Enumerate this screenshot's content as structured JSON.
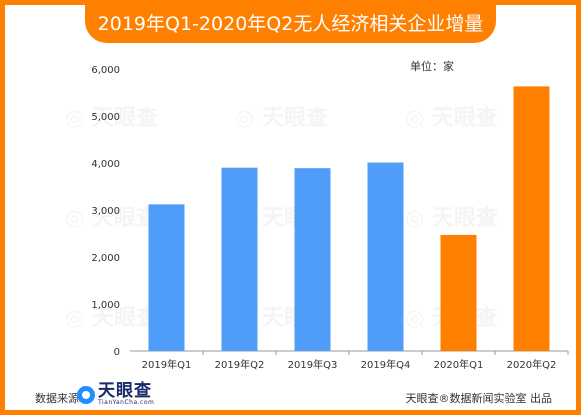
{
  "title": "2019年Q1-2020年Q2无人经济相关企业增量",
  "unit_label": "单位：家",
  "source_label": "数据来源：",
  "logo": {
    "name": "天眼查",
    "url": "TianYanCha.com"
  },
  "publisher": "天眼查®数据新闻实验室 出品",
  "watermark": "天眼查",
  "colors": {
    "frame": "#ff7f00",
    "title_bg": "#ff7f00",
    "bar_blue": "#4f9cf9",
    "bar_orange": "#ff7f00"
  },
  "chart_data": {
    "type": "bar",
    "categories": [
      "2019年Q1",
      "2019年Q2",
      "2019年Q3",
      "2019年Q4",
      "2020年Q1",
      "2020年Q2"
    ],
    "values": [
      3120,
      3900,
      3890,
      4010,
      2470,
      5630
    ],
    "bar_colors": [
      "#4f9cf9",
      "#4f9cf9",
      "#4f9cf9",
      "#4f9cf9",
      "#ff7f00",
      "#ff7f00"
    ],
    "ylim": [
      0,
      6000
    ],
    "yticks": [
      0,
      1000,
      2000,
      3000,
      4000,
      5000,
      6000
    ],
    "ytick_labels": [
      "0",
      "1,000",
      "2,000",
      "3,000",
      "4,000",
      "5,000",
      "6,000"
    ],
    "grid": false,
    "legend": "none"
  }
}
